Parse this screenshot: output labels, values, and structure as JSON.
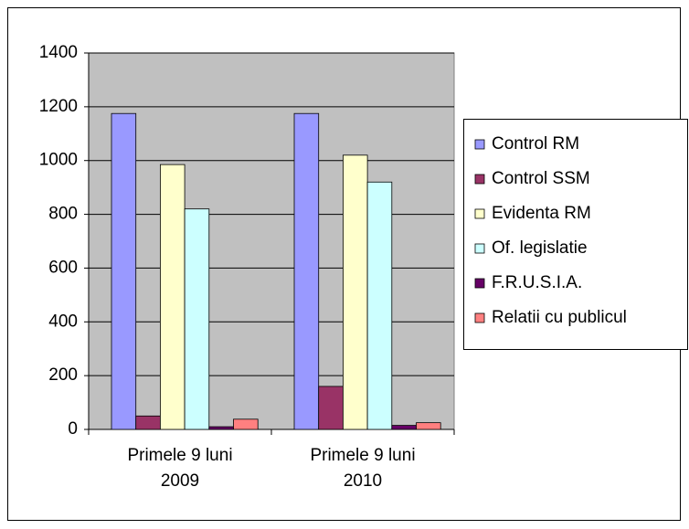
{
  "chart_data": {
    "type": "bar",
    "categories": [
      "Primele 9 luni 2009",
      "Primele 9 luni 2010"
    ],
    "series": [
      {
        "name": "Control RM",
        "color": "#9999ff",
        "values": [
          1175,
          1175
        ]
      },
      {
        "name": "Control SSM",
        "color": "#993366",
        "values": [
          50,
          160
        ]
      },
      {
        "name": "Evidenta RM",
        "color": "#ffffcc",
        "values": [
          985,
          1020
        ]
      },
      {
        "name": "Of. legislatie",
        "color": "#ccffff",
        "values": [
          820,
          920
        ]
      },
      {
        "name": "F.R.U.S.I.A.",
        "color": "#660066",
        "values": [
          10,
          15
        ]
      },
      {
        "name": "Relatii cu publicul",
        "color": "#ff8080",
        "values": [
          38,
          25
        ]
      }
    ],
    "ylim": [
      0,
      1400
    ],
    "yticks": [
      0,
      200,
      400,
      600,
      800,
      1000,
      1200,
      1400
    ],
    "grid": true,
    "legend": "right"
  }
}
